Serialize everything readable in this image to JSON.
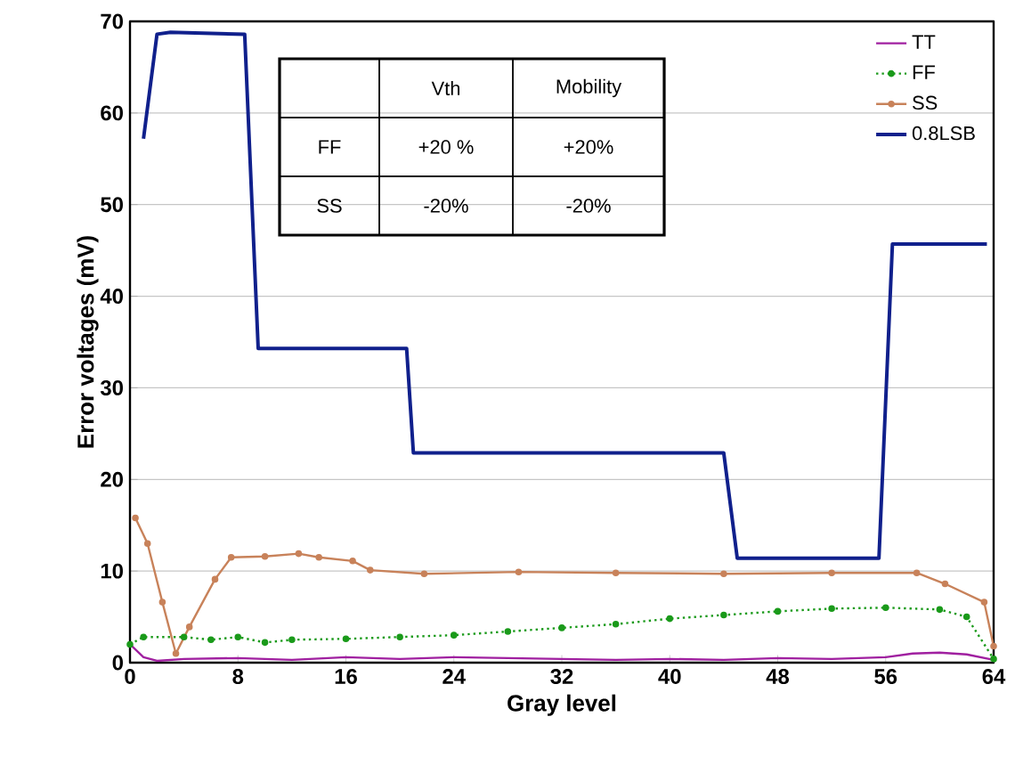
{
  "chart_data": {
    "type": "line",
    "xlabel": "Gray level",
    "ylabel": "Error voltages (mV)",
    "xlim": [
      0,
      64
    ],
    "xticks": [
      0,
      8,
      16,
      24,
      32,
      40,
      48,
      56,
      64
    ],
    "ylim": [
      0,
      70
    ],
    "yticks": [
      0,
      10,
      20,
      30,
      40,
      50,
      60,
      70
    ],
    "grid": "y",
    "legend": "top right",
    "annotations": [
      "Vth",
      "Mobility",
      "FF",
      "+20 %",
      "+20%",
      "SS",
      "-20%",
      "-20%"
    ],
    "series": [
      {
        "name": "TT",
        "color": "#a020a0",
        "marker": "none",
        "line_style": "solid",
        "x": [
          0,
          1,
          2,
          4,
          8,
          12,
          16,
          20,
          24,
          28,
          32,
          36,
          40,
          44,
          48,
          52,
          56,
          58,
          60,
          62,
          64
        ],
        "values": [
          2.0,
          0.6,
          0.2,
          0.4,
          0.5,
          0.3,
          0.6,
          0.4,
          0.6,
          0.5,
          0.4,
          0.3,
          0.4,
          0.3,
          0.5,
          0.4,
          0.6,
          1.0,
          1.1,
          0.9,
          0.3
        ]
      },
      {
        "name": "FF",
        "color": "#1a9a1a",
        "marker": "circle",
        "line_style": "dotted",
        "x": [
          0,
          1,
          4,
          6,
          8,
          10,
          12,
          16,
          20,
          24,
          28,
          32,
          36,
          40,
          44,
          48,
          52,
          56,
          60,
          62,
          64
        ],
        "values": [
          2.0,
          2.8,
          2.8,
          2.5,
          2.8,
          2.2,
          2.5,
          2.6,
          2.8,
          3.0,
          3.4,
          3.8,
          4.2,
          4.8,
          5.2,
          5.6,
          5.9,
          6.0,
          5.8,
          5.0,
          0.4
        ]
      },
      {
        "name": "SS",
        "color": "#c8825a",
        "marker": "circle",
        "line_style": "solid",
        "x": [
          0.4,
          1.3,
          2.4,
          3.4,
          4.4,
          6.3,
          7.5,
          10,
          12.5,
          14,
          16.5,
          17.8,
          21.8,
          28.8,
          36,
          44,
          52,
          58.3,
          60.4,
          63.3,
          64
        ],
        "values": [
          15.8,
          13.0,
          6.6,
          1.0,
          3.9,
          9.1,
          11.5,
          11.6,
          11.9,
          11.5,
          11.1,
          10.1,
          9.7,
          9.9,
          9.8,
          9.7,
          9.8,
          9.8,
          8.6,
          6.6,
          1.8
        ]
      },
      {
        "name": "0.8LSB",
        "color": "#10208c",
        "marker": "none",
        "line_style": "solid",
        "x": [
          1,
          2,
          3,
          8.5,
          9.5,
          20.5,
          21,
          44,
          45,
          55.5,
          56.5,
          63.5
        ],
        "values": [
          57.2,
          68.6,
          68.8,
          68.6,
          34.3,
          34.3,
          22.9,
          22.9,
          11.4,
          11.4,
          45.7,
          45.7
        ]
      }
    ]
  }
}
